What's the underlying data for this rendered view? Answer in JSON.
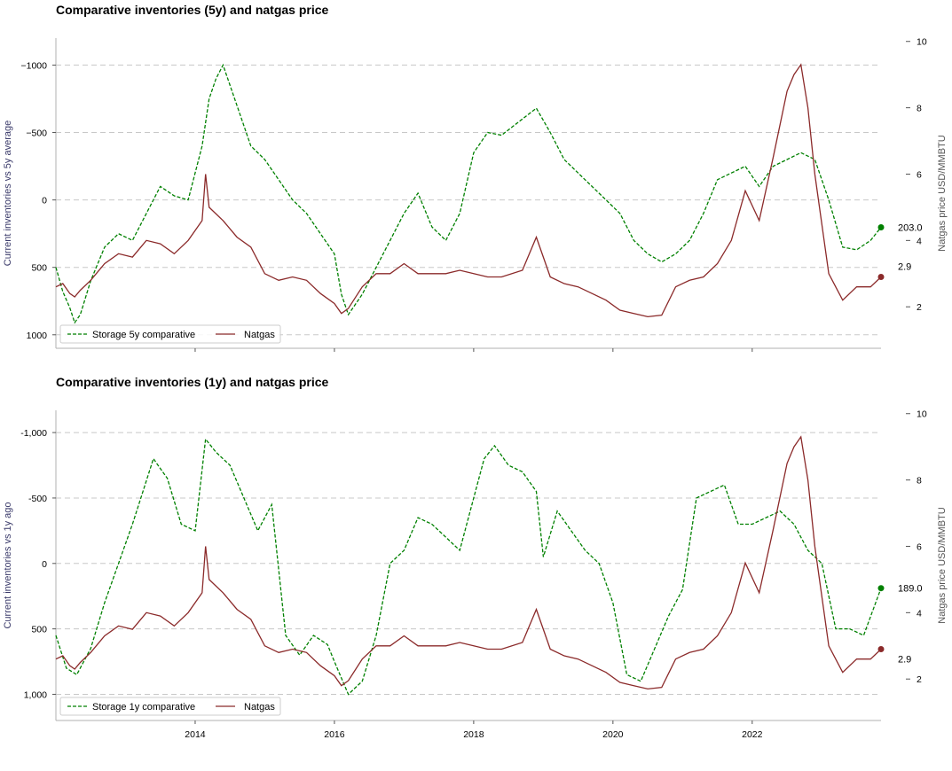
{
  "chart_data": [
    {
      "type": "line",
      "title": "Comparative inventories (5y) and natgas price",
      "ylabel_left": "Current inventories vs 5y average",
      "ylabel_right": "Natgas price USD/MMBTU",
      "left_axis": {
        "inverted": true,
        "ylim": [
          1100,
          -1200
        ],
        "ticks": [
          -1000,
          -500,
          0,
          500,
          1000
        ],
        "tick_labels": [
          "−1000",
          "−500",
          "0",
          "500",
          "1000"
        ]
      },
      "right_axis": {
        "ylim": [
          0.75,
          10.1
        ],
        "ticks": [
          2,
          4,
          6,
          8,
          10
        ],
        "tick_labels": [
          "2",
          "4",
          "6",
          "8",
          "10"
        ]
      },
      "x_axis": {
        "range": [
          2012.0,
          2023.85
        ],
        "ticks": [
          2014,
          2016,
          2018,
          2020,
          2022
        ],
        "tick_labels": []
      },
      "grid": "horizontal dashed",
      "legend": "lower-left",
      "series": [
        {
          "name": "Storage 5y comparative",
          "axis": "left",
          "color": "#008000",
          "style": "dashed",
          "x": [
            2012.0,
            2012.1,
            2012.2,
            2012.27,
            2012.35,
            2012.5,
            2012.7,
            2012.9,
            2013.1,
            2013.3,
            2013.5,
            2013.7,
            2013.9,
            2014.1,
            2014.2,
            2014.3,
            2014.4,
            2014.6,
            2014.8,
            2015.0,
            2015.2,
            2015.4,
            2015.6,
            2015.8,
            2016.0,
            2016.1,
            2016.2,
            2016.4,
            2016.6,
            2016.8,
            2017.0,
            2017.2,
            2017.4,
            2017.6,
            2017.8,
            2018.0,
            2018.2,
            2018.4,
            2018.7,
            2018.9,
            2019.1,
            2019.3,
            2019.5,
            2019.7,
            2019.9,
            2020.1,
            2020.3,
            2020.5,
            2020.7,
            2020.9,
            2021.1,
            2021.3,
            2021.5,
            2021.7,
            2021.9,
            2022.1,
            2022.3,
            2022.5,
            2022.7,
            2022.9,
            2023.1,
            2023.3,
            2023.5,
            2023.7,
            2023.85
          ],
          "y": [
            500,
            680,
            800,
            910,
            850,
            600,
            350,
            250,
            300,
            100,
            -100,
            -30,
            0,
            -400,
            -750,
            -900,
            -1000,
            -700,
            -400,
            -300,
            -150,
            0,
            100,
            250,
            400,
            700,
            850,
            700,
            500,
            300,
            100,
            -50,
            200,
            300,
            100,
            -350,
            -500,
            -480,
            -600,
            -680,
            -500,
            -300,
            -200,
            -100,
            0,
            100,
            300,
            400,
            460,
            400,
            300,
            100,
            -150,
            -200,
            -250,
            -100,
            -250,
            -300,
            -350,
            -300,
            0,
            350,
            370,
            300,
            203
          ]
        },
        {
          "name": "Natgas",
          "axis": "right",
          "color": "#8b2a2a",
          "style": "solid",
          "x": [
            2012.0,
            2012.1,
            2012.2,
            2012.27,
            2012.35,
            2012.5,
            2012.7,
            2012.9,
            2013.1,
            2013.3,
            2013.5,
            2013.7,
            2013.9,
            2014.1,
            2014.15,
            2014.2,
            2014.4,
            2014.6,
            2014.8,
            2015.0,
            2015.2,
            2015.4,
            2015.6,
            2015.8,
            2016.0,
            2016.1,
            2016.2,
            2016.4,
            2016.6,
            2016.8,
            2017.0,
            2017.2,
            2017.4,
            2017.6,
            2017.8,
            2018.0,
            2018.2,
            2018.4,
            2018.7,
            2018.9,
            2019.1,
            2019.3,
            2019.5,
            2019.7,
            2019.9,
            2020.1,
            2020.3,
            2020.5,
            2020.7,
            2020.9,
            2021.1,
            2021.3,
            2021.5,
            2021.7,
            2021.9,
            2022.1,
            2022.3,
            2022.5,
            2022.6,
            2022.7,
            2022.8,
            2022.9,
            2023.1,
            2023.3,
            2023.5,
            2023.7,
            2023.85
          ],
          "y": [
            2.6,
            2.7,
            2.4,
            2.3,
            2.5,
            2.8,
            3.3,
            3.6,
            3.5,
            4.0,
            3.9,
            3.6,
            4.0,
            4.6,
            6.0,
            5.0,
            4.6,
            4.1,
            3.8,
            3.0,
            2.8,
            2.9,
            2.8,
            2.4,
            2.1,
            1.8,
            1.95,
            2.6,
            3.0,
            3.0,
            3.3,
            3.0,
            3.0,
            3.0,
            3.1,
            3.0,
            2.9,
            2.9,
            3.1,
            4.1,
            2.9,
            2.7,
            2.6,
            2.4,
            2.2,
            1.9,
            1.8,
            1.7,
            1.75,
            2.6,
            2.8,
            2.9,
            3.3,
            4.0,
            5.5,
            4.6,
            6.5,
            8.5,
            9.0,
            9.3,
            8.0,
            6.0,
            3.0,
            2.2,
            2.6,
            2.6,
            2.9
          ]
        }
      ],
      "end_labels": [
        {
          "series": "Storage 5y comparative",
          "value": "203.0"
        },
        {
          "series": "Natgas",
          "value": "2.9"
        }
      ]
    },
    {
      "type": "line",
      "title": "Comparative inventories (1y) and natgas price",
      "ylabel_left": "Current inventories vs 1y ago",
      "ylabel_right": "Natgas price USD/MMBTU",
      "left_axis": {
        "inverted": true,
        "ylim": [
          1200,
          -1170
        ],
        "ticks": [
          -1000,
          -500,
          0,
          500,
          1000
        ],
        "tick_labels": [
          "-1,000",
          "-500",
          "0",
          "500",
          "1,000"
        ]
      },
      "right_axis": {
        "ylim": [
          0.75,
          10.1
        ],
        "ticks": [
          2,
          4,
          6,
          8,
          10
        ],
        "tick_labels": [
          "2",
          "4",
          "6",
          "8",
          "10"
        ]
      },
      "x_axis": {
        "range": [
          2012.0,
          2023.85
        ],
        "ticks": [
          2014,
          2016,
          2018,
          2020,
          2022
        ],
        "tick_labels": [
          "2014",
          "2016",
          "2018",
          "2020",
          "2022"
        ]
      },
      "grid": "horizontal dashed",
      "legend": "lower-left",
      "series": [
        {
          "name": "Storage 1y comparative",
          "axis": "left",
          "color": "#008000",
          "style": "dashed",
          "x": [
            2012.0,
            2012.15,
            2012.3,
            2012.5,
            2012.7,
            2012.9,
            2013.1,
            2013.25,
            2013.4,
            2013.6,
            2013.8,
            2014.0,
            2014.15,
            2014.3,
            2014.5,
            2014.7,
            2014.9,
            2015.1,
            2015.3,
            2015.5,
            2015.7,
            2015.9,
            2016.0,
            2016.2,
            2016.4,
            2016.6,
            2016.8,
            2017.0,
            2017.2,
            2017.4,
            2017.6,
            2017.8,
            2018.0,
            2018.15,
            2018.3,
            2018.5,
            2018.7,
            2018.9,
            2019.0,
            2019.2,
            2019.4,
            2019.6,
            2019.8,
            2020.0,
            2020.2,
            2020.4,
            2020.6,
            2020.8,
            2021.0,
            2021.2,
            2021.4,
            2021.6,
            2021.8,
            2022.0,
            2022.2,
            2022.4,
            2022.6,
            2022.8,
            2023.0,
            2023.2,
            2023.4,
            2023.6,
            2023.85
          ],
          "y": [
            550,
            800,
            850,
            650,
            300,
            0,
            -300,
            -550,
            -800,
            -650,
            -300,
            -250,
            -950,
            -850,
            -750,
            -500,
            -250,
            -450,
            550,
            700,
            550,
            620,
            750,
            1000,
            900,
            550,
            0,
            -100,
            -350,
            -300,
            -200,
            -100,
            -500,
            -800,
            -900,
            -750,
            -700,
            -550,
            -50,
            -400,
            -250,
            -100,
            0,
            300,
            850,
            900,
            650,
            400,
            200,
            -500,
            -550,
            -600,
            -300,
            -300,
            -350,
            -400,
            -300,
            -100,
            0,
            500,
            500,
            550,
            189
          ]
        },
        {
          "name": "Natgas",
          "axis": "right",
          "color": "#8b2a2a",
          "style": "solid",
          "x": [
            2012.0,
            2012.1,
            2012.2,
            2012.27,
            2012.35,
            2012.5,
            2012.7,
            2012.9,
            2013.1,
            2013.3,
            2013.5,
            2013.7,
            2013.9,
            2014.1,
            2014.15,
            2014.2,
            2014.4,
            2014.6,
            2014.8,
            2015.0,
            2015.2,
            2015.4,
            2015.6,
            2015.8,
            2016.0,
            2016.1,
            2016.2,
            2016.4,
            2016.6,
            2016.8,
            2017.0,
            2017.2,
            2017.4,
            2017.6,
            2017.8,
            2018.0,
            2018.2,
            2018.4,
            2018.7,
            2018.9,
            2019.1,
            2019.3,
            2019.5,
            2019.7,
            2019.9,
            2020.1,
            2020.3,
            2020.5,
            2020.7,
            2020.9,
            2021.1,
            2021.3,
            2021.5,
            2021.7,
            2021.9,
            2022.1,
            2022.3,
            2022.5,
            2022.6,
            2022.7,
            2022.8,
            2022.9,
            2023.1,
            2023.3,
            2023.5,
            2023.7,
            2023.85
          ],
          "y": [
            2.6,
            2.7,
            2.4,
            2.3,
            2.5,
            2.8,
            3.3,
            3.6,
            3.5,
            4.0,
            3.9,
            3.6,
            4.0,
            4.6,
            6.0,
            5.0,
            4.6,
            4.1,
            3.8,
            3.0,
            2.8,
            2.9,
            2.8,
            2.4,
            2.1,
            1.8,
            1.95,
            2.6,
            3.0,
            3.0,
            3.3,
            3.0,
            3.0,
            3.0,
            3.1,
            3.0,
            2.9,
            2.9,
            3.1,
            4.1,
            2.9,
            2.7,
            2.6,
            2.4,
            2.2,
            1.9,
            1.8,
            1.7,
            1.75,
            2.6,
            2.8,
            2.9,
            3.3,
            4.0,
            5.5,
            4.6,
            6.5,
            8.5,
            9.0,
            9.3,
            8.0,
            6.0,
            3.0,
            2.2,
            2.6,
            2.6,
            2.9
          ]
        }
      ],
      "end_labels": [
        {
          "series": "Storage 1y comparative",
          "value": "189.0"
        },
        {
          "series": "Natgas",
          "value": "2.9"
        }
      ]
    }
  ]
}
